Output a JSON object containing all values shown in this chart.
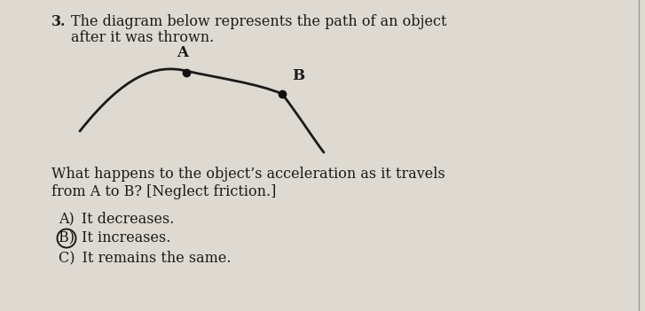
{
  "bg_color": "#dedad2",
  "text_color": "#1a1a1a",
  "arc_color": "#1a1a1a",
  "dot_color": "#111111",
  "title_number": "3.",
  "title_text": "The diagram below represents the path of an object after it was thrown.",
  "question_line1": "What happens to the object’s acceleration as it travels",
  "question_line2": "from A to B? [Neglect friction.]",
  "optA": "A) It decreases.",
  "optB": "B) It increases.",
  "optC": "C) It remains the same.",
  "label_A": "A",
  "label_B": "B",
  "font_size_title": 11.5,
  "font_size_body": 11.5,
  "font_size_label": 12
}
